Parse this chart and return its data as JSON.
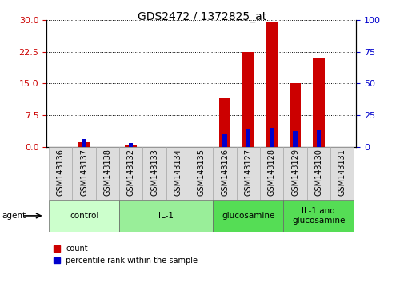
{
  "title": "GDS2472 / 1372825_at",
  "samples": [
    "GSM143136",
    "GSM143137",
    "GSM143138",
    "GSM143132",
    "GSM143133",
    "GSM143134",
    "GSM143135",
    "GSM143126",
    "GSM143127",
    "GSM143128",
    "GSM143129",
    "GSM143130",
    "GSM143131"
  ],
  "count_values": [
    0.0,
    1.2,
    0.0,
    0.5,
    0.0,
    0.0,
    0.0,
    11.5,
    22.5,
    29.5,
    15.0,
    21.0,
    0.0
  ],
  "percentile_values": [
    0.0,
    6.5,
    0.0,
    3.5,
    0.0,
    0.0,
    0.0,
    10.5,
    14.5,
    15.0,
    12.5,
    14.0,
    0.0
  ],
  "count_color": "#cc0000",
  "percentile_color": "#0000cc",
  "ylim_left": [
    0,
    30
  ],
  "ylim_right": [
    0,
    100
  ],
  "yticks_left": [
    0,
    7.5,
    15,
    22.5,
    30
  ],
  "yticks_right": [
    0,
    25,
    50,
    75,
    100
  ],
  "groups": [
    {
      "label": "control",
      "start": 0,
      "end": 3,
      "color": "#ccffcc"
    },
    {
      "label": "IL-1",
      "start": 3,
      "end": 7,
      "color": "#88ee88"
    },
    {
      "label": "glucosamine",
      "start": 7,
      "end": 10,
      "color": "#44cc44"
    },
    {
      "label": "IL-1 and\nglucosamine",
      "start": 10,
      "end": 13,
      "color": "#44cc44"
    }
  ],
  "agent_label": "agent",
  "legend_count": "count",
  "legend_pct": "percentile rank within the sample",
  "background_color": "#ffffff",
  "bar_width": 0.5,
  "title_fontsize": 10,
  "label_fontsize": 7,
  "group_fontsize": 7.5
}
